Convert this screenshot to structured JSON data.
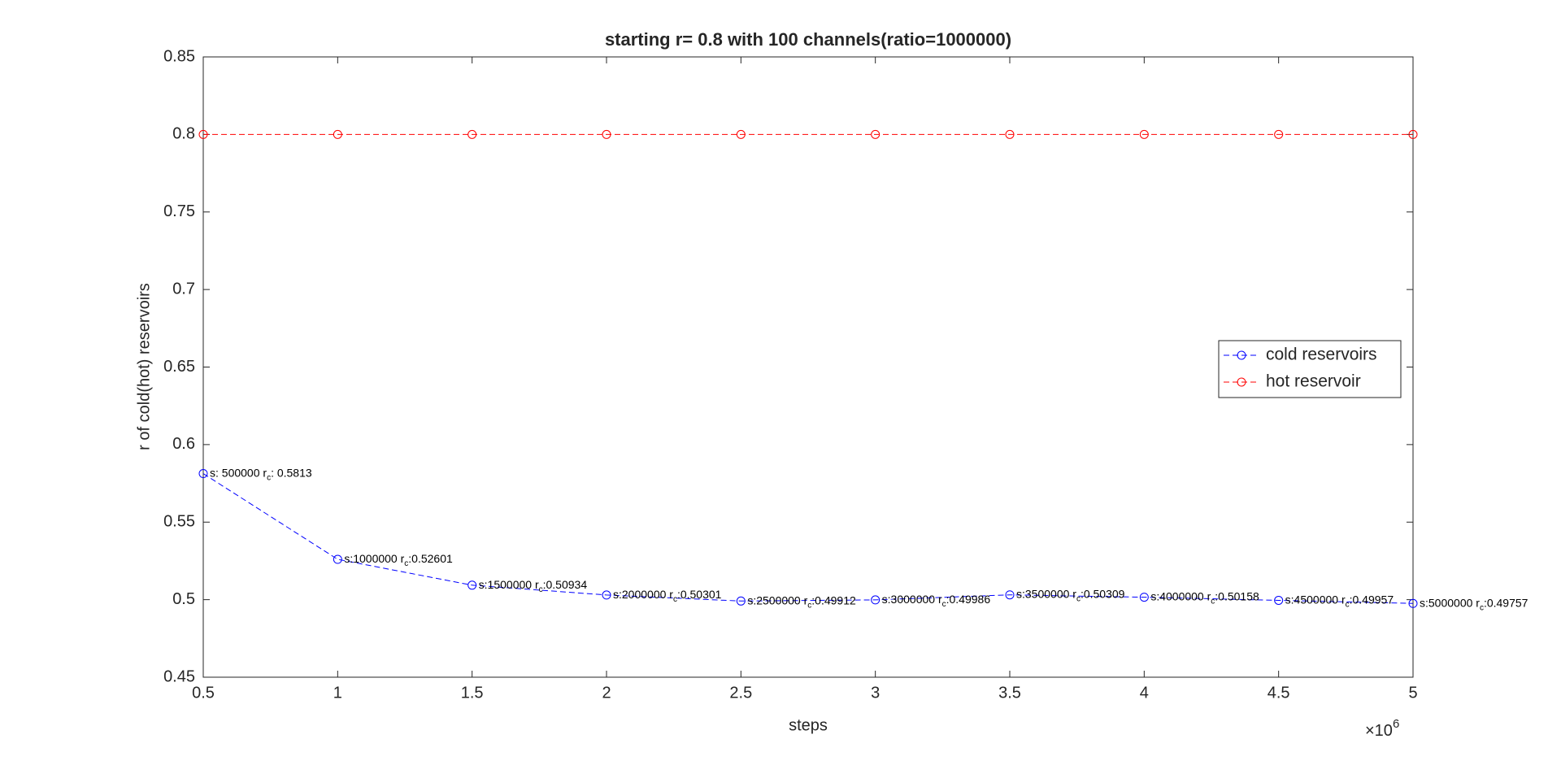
{
  "chart_data": {
    "type": "line",
    "title": "starting r= 0.8 with 100 channels(ratio=1000000)",
    "x_label": "steps",
    "y_label": "r of cold(hot) reservoirs",
    "x_multiplier": {
      "base": "×10",
      "exponent": "6"
    },
    "x": [
      0.5,
      1,
      1.5,
      2,
      2.5,
      3,
      3.5,
      4,
      4.5,
      5
    ],
    "series": [
      {
        "name": "cold reservoirs",
        "color": "#0000ff",
        "values": [
          0.5813,
          0.52601,
          0.50934,
          0.50301,
          0.49912,
          0.49986,
          0.50309,
          0.50158,
          0.49957,
          0.49757
        ],
        "value_labels": [
          {
            "text": "s: 500000 r",
            "sub": "c",
            "value": ": 0.5813"
          },
          {
            "text": "s:1000000 r",
            "sub": "c",
            "value": ":0.52601"
          },
          {
            "text": "s:1500000 r",
            "sub": "c",
            "value": ":0.50934"
          },
          {
            "text": "s:2000000 r",
            "sub": "c",
            "value": ":0.50301"
          },
          {
            "text": "s:2500000 r",
            "sub": "c",
            "value": ":0.49912"
          },
          {
            "text": "s:3000000 r",
            "sub": "c",
            "value": ":0.49986"
          },
          {
            "text": "s:3500000 r",
            "sub": "c",
            "value": ":0.50309"
          },
          {
            "text": "s:4000000 r",
            "sub": "c",
            "value": ":0.50158"
          },
          {
            "text": "s:4500000 r",
            "sub": "c",
            "value": ":0.49957"
          },
          {
            "text": "s:5000000 r",
            "sub": "c",
            "value": ":0.49757"
          }
        ]
      },
      {
        "name": "hot reservoir",
        "color": "#ff0000",
        "values": [
          0.8,
          0.8,
          0.8,
          0.8,
          0.8,
          0.8,
          0.8,
          0.8,
          0.8,
          0.8
        ]
      }
    ],
    "xlim": [
      0.5,
      5
    ],
    "xticks": [
      0.5,
      1,
      1.5,
      2,
      2.5,
      3,
      3.5,
      4,
      4.5,
      5
    ],
    "ylim": [
      0.45,
      0.85
    ],
    "yticks": [
      0.45,
      0.5,
      0.55,
      0.6,
      0.65,
      0.7,
      0.75,
      0.8,
      0.85
    ],
    "grid": false,
    "legend": "east"
  }
}
